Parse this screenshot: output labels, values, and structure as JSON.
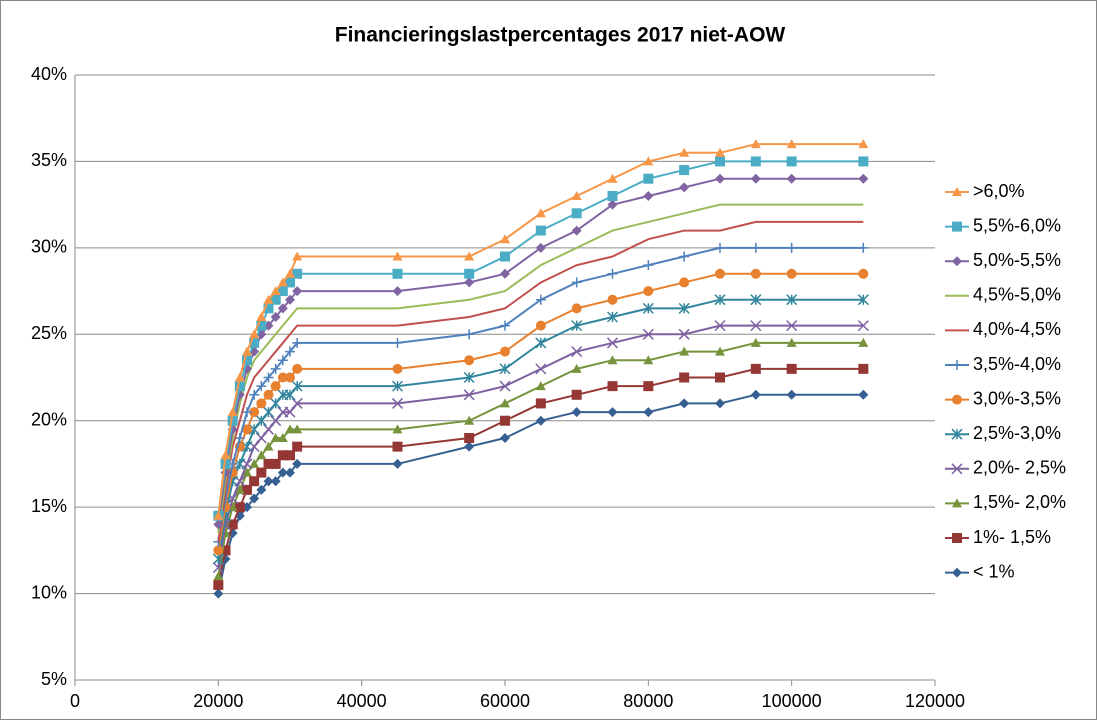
{
  "chart_data": {
    "type": "line",
    "title": "Financieringslastpercentages 2017 niet-AOW",
    "x": [
      20000,
      21000,
      22000,
      23000,
      24000,
      25000,
      26000,
      27000,
      28000,
      29000,
      30000,
      31000,
      45000,
      55000,
      60000,
      65000,
      70000,
      75000,
      80000,
      85000,
      90000,
      95000,
      100000,
      110000
    ],
    "series": [
      {
        "name": ">6,0%",
        "color": "#f79646",
        "marker": "triangle",
        "values": [
          14.5,
          18,
          20.5,
          22.5,
          24,
          25,
          26,
          27,
          27.5,
          28,
          28.5,
          29.5,
          29.5,
          29.5,
          30.5,
          32,
          33,
          34,
          35,
          35.5,
          35.5,
          36,
          36,
          36
        ]
      },
      {
        "name": "5,5%-6,0%",
        "color": "#4bacc6",
        "marker": "square",
        "values": [
          14.5,
          17.5,
          20,
          22,
          23.5,
          24.5,
          25.5,
          26.5,
          27,
          27.5,
          28,
          28.5,
          28.5,
          28.5,
          29.5,
          31,
          32,
          33,
          34,
          34.5,
          35,
          35,
          35,
          35
        ]
      },
      {
        "name": "5,0%-5,5%",
        "color": "#8064a2",
        "marker": "diamond",
        "values": [
          14,
          17,
          19.5,
          21.5,
          23,
          24,
          25,
          25.5,
          26,
          26.5,
          27,
          27.5,
          27.5,
          28,
          28.5,
          30,
          31,
          32.5,
          33,
          33.5,
          34,
          34,
          34,
          34
        ]
      },
      {
        "name": "4,5%-5,0%",
        "color": "#9bbb59",
        "marker": "none",
        "values": [
          13.5,
          16.5,
          19,
          21,
          22.5,
          23.5,
          24,
          24.5,
          25,
          25.5,
          26,
          26.5,
          26.5,
          27,
          27.5,
          29,
          30,
          31,
          31.5,
          32,
          32.5,
          32.5,
          32.5,
          32.5
        ]
      },
      {
        "name": "4,0%-4,5%",
        "color": "#c0504d",
        "marker": "none",
        "values": [
          13,
          16,
          18.5,
          20,
          21.5,
          22.5,
          23,
          23.5,
          24,
          24.5,
          25,
          25.5,
          25.5,
          26,
          26.5,
          28,
          29,
          29.5,
          30.5,
          31,
          31,
          31.5,
          31.5,
          31.5
        ]
      },
      {
        "name": "3,5%-4,0%",
        "color": "#4f81bd",
        "marker": "plus",
        "values": [
          13,
          15.5,
          17.5,
          19,
          20.5,
          21.5,
          22,
          22.5,
          23,
          23.5,
          24,
          24.5,
          24.5,
          25,
          25.5,
          27,
          28,
          28.5,
          29,
          29.5,
          30,
          30,
          30,
          30
        ]
      },
      {
        "name": "3,0%-3,5%",
        "color": "#e7812f",
        "marker": "circle",
        "values": [
          12.5,
          15,
          17,
          18.5,
          19.5,
          20.5,
          21,
          21.5,
          22,
          22.5,
          22.5,
          23,
          23,
          23.5,
          24,
          25.5,
          26.5,
          27,
          27.5,
          28,
          28.5,
          28.5,
          28.5,
          28.5
        ]
      },
      {
        "name": "2,5%-3,0%",
        "color": "#31859c",
        "marker": "star",
        "values": [
          12,
          14.5,
          16.5,
          17.5,
          18.5,
          19.5,
          20,
          20.5,
          21,
          21.5,
          21.5,
          22,
          22,
          22.5,
          23,
          24.5,
          25.5,
          26,
          26.5,
          26.5,
          27,
          27,
          27,
          27
        ]
      },
      {
        "name": "2,0%- 2,5%",
        "color": "#7d60a0",
        "marker": "cross",
        "values": [
          11.5,
          14,
          15.5,
          16.5,
          17.5,
          18.5,
          19,
          19.5,
          20,
          20.5,
          20.5,
          21,
          21,
          21.5,
          22,
          23,
          24,
          24.5,
          25,
          25,
          25.5,
          25.5,
          25.5,
          25.5
        ]
      },
      {
        "name": "1,5%- 2,0%",
        "color": "#77933c",
        "marker": "triangle",
        "values": [
          11,
          13.5,
          15,
          16,
          17,
          17.5,
          18,
          18.5,
          19,
          19,
          19.5,
          19.5,
          19.5,
          20,
          21,
          22,
          23,
          23.5,
          23.5,
          24,
          24,
          24.5,
          24.5,
          24.5
        ]
      },
      {
        "name": "1%- 1,5%",
        "color": "#953735",
        "marker": "square",
        "values": [
          10.5,
          12.5,
          14,
          15,
          16,
          16.5,
          17,
          17.5,
          17.5,
          18,
          18,
          18.5,
          18.5,
          19,
          20,
          21,
          21.5,
          22,
          22,
          22.5,
          22.5,
          23,
          23,
          23
        ]
      },
      {
        "name": "< 1%",
        "color": "#376092",
        "marker": "diamond",
        "values": [
          10,
          12,
          13.5,
          14.5,
          15,
          15.5,
          16,
          16.5,
          16.5,
          17,
          17,
          17.5,
          17.5,
          18.5,
          19,
          20,
          20.5,
          20.5,
          20.5,
          21,
          21,
          21.5,
          21.5,
          21.5
        ]
      }
    ],
    "xlim": [
      0,
      120000
    ],
    "xticks": [
      0,
      20000,
      40000,
      60000,
      80000,
      100000,
      120000
    ],
    "ylim": [
      5,
      40
    ],
    "yticks": [
      {
        "value": 5,
        "label": "5%"
      },
      {
        "value": 10,
        "label": "10%"
      },
      {
        "value": 15,
        "label": "15%"
      },
      {
        "value": 20,
        "label": "20%"
      },
      {
        "value": 25,
        "label": "25%"
      },
      {
        "value": 30,
        "label": "30%"
      },
      {
        "value": 35,
        "label": "35%"
      },
      {
        "value": 40,
        "label": "40%"
      }
    ],
    "grid": true,
    "legend": "right"
  }
}
